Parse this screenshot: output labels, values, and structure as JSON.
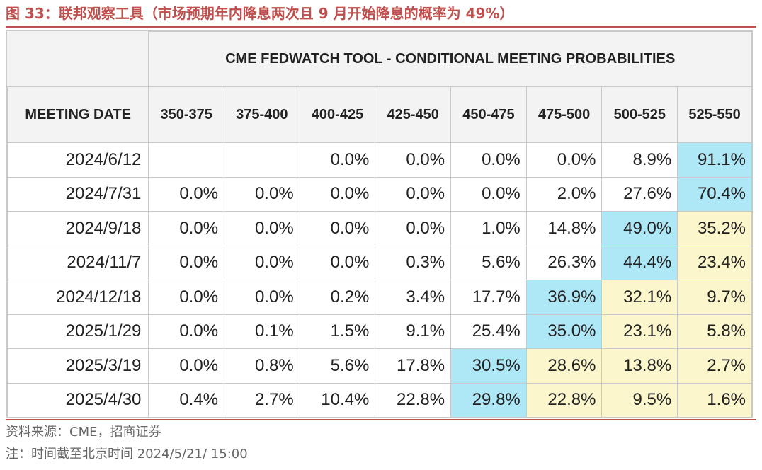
{
  "figure_title": "图 33：联邦观察工具（市场预期年内降息两次且 9 月开始降息的概率为 49%）",
  "table_title": "CME FEDWATCH TOOL - CONDITIONAL MEETING PROBABILITIES",
  "columns": [
    "MEETING DATE",
    "350-375",
    "375-400",
    "400-425",
    "425-450",
    "450-475",
    "475-500",
    "500-525",
    "525-550"
  ],
  "rows": [
    {
      "date": "2024/6/12",
      "values": [
        "",
        "",
        "0.0%",
        "0.0%",
        "0.0%",
        "0.0%",
        "8.9%",
        "91.1%"
      ],
      "highlight": [
        "",
        "",
        "",
        "",
        "",
        "",
        "",
        "blue"
      ]
    },
    {
      "date": "2024/7/31",
      "values": [
        "0.0%",
        "0.0%",
        "0.0%",
        "0.0%",
        "0.0%",
        "2.0%",
        "27.6%",
        "70.4%"
      ],
      "highlight": [
        "",
        "",
        "",
        "",
        "",
        "",
        "",
        "blue"
      ]
    },
    {
      "date": "2024/9/18",
      "values": [
        "0.0%",
        "0.0%",
        "0.0%",
        "0.0%",
        "1.0%",
        "14.8%",
        "49.0%",
        "35.2%"
      ],
      "highlight": [
        "",
        "",
        "",
        "",
        "",
        "",
        "blue",
        "yellow"
      ]
    },
    {
      "date": "2024/11/7",
      "values": [
        "0.0%",
        "0.0%",
        "0.0%",
        "0.3%",
        "5.6%",
        "26.3%",
        "44.4%",
        "23.4%"
      ],
      "highlight": [
        "",
        "",
        "",
        "",
        "",
        "",
        "blue",
        "yellow"
      ]
    },
    {
      "date": "2024/12/18",
      "values": [
        "0.0%",
        "0.0%",
        "0.2%",
        "3.4%",
        "17.7%",
        "36.9%",
        "32.1%",
        "9.7%"
      ],
      "highlight": [
        "",
        "",
        "",
        "",
        "",
        "blue",
        "yellow",
        "yellow"
      ]
    },
    {
      "date": "2025/1/29",
      "values": [
        "0.0%",
        "0.1%",
        "1.5%",
        "9.1%",
        "25.4%",
        "35.0%",
        "23.1%",
        "5.8%"
      ],
      "highlight": [
        "",
        "",
        "",
        "",
        "",
        "blue",
        "yellow",
        "yellow"
      ]
    },
    {
      "date": "2025/3/19",
      "values": [
        "0.0%",
        "0.8%",
        "5.6%",
        "17.8%",
        "30.5%",
        "28.6%",
        "13.8%",
        "2.7%"
      ],
      "highlight": [
        "",
        "",
        "",
        "",
        "blue",
        "yellow",
        "yellow",
        "yellow"
      ]
    },
    {
      "date": "2025/4/30",
      "values": [
        "0.4%",
        "2.7%",
        "10.4%",
        "22.8%",
        "29.8%",
        "22.8%",
        "9.5%",
        "1.6%"
      ],
      "highlight": [
        "",
        "",
        "",
        "",
        "blue",
        "yellow",
        "yellow",
        "yellow"
      ]
    }
  ],
  "colors": {
    "title": "#c0504d",
    "highlight_blue": "#aee7f6",
    "highlight_yellow": "#fbf6cb",
    "header_bg": "#f3f3f3"
  },
  "source": "资料来源：CME，招商证券",
  "note": "注：时间截至北京时间 2024/5/21/ 15:00"
}
